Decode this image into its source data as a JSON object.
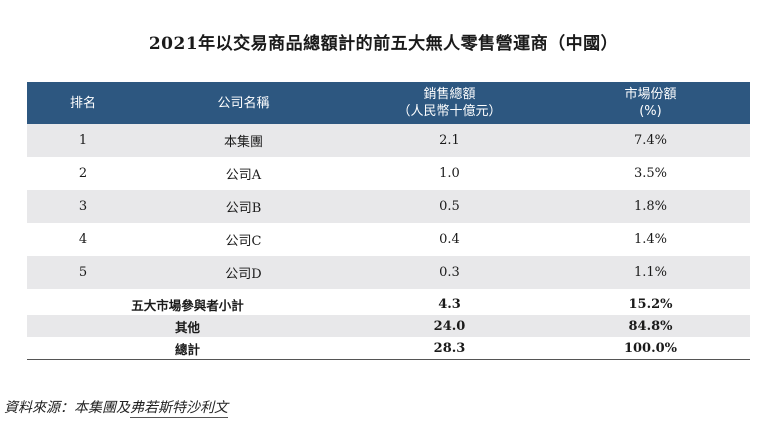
{
  "title": "2021年以交易商品總額計的前五大無人零售營運商（中國）",
  "header": {
    "rank": "排名",
    "company": "公司名稱",
    "sales_line1": "銷售總額",
    "sales_line2": "（人民幣十億元）",
    "share_line1": "市場份額",
    "share_line2": "(%)"
  },
  "rows": [
    {
      "rank": "1",
      "company": "本集團",
      "sales": "2.1",
      "share": "7.4%"
    },
    {
      "rank": "2",
      "company": "公司A",
      "sales": "1.0",
      "share": "3.5%"
    },
    {
      "rank": "3",
      "company": "公司B",
      "sales": "0.5",
      "share": "1.8%"
    },
    {
      "rank": "4",
      "company": "公司C",
      "sales": "0.4",
      "share": "1.4%"
    },
    {
      "rank": "5",
      "company": "公司D",
      "sales": "0.3",
      "share": "1.1%"
    }
  ],
  "summary": [
    {
      "label": "五大市場參與者小計",
      "sales": "4.3",
      "share": "15.2%"
    },
    {
      "label": "其他",
      "sales": "24.0",
      "share": "84.8%"
    },
    {
      "label": "總計",
      "sales": "28.3",
      "share": "100.0%"
    }
  ],
  "source": {
    "prefix": "資料來源：本集團及",
    "link": "弗若斯特沙利文"
  }
}
